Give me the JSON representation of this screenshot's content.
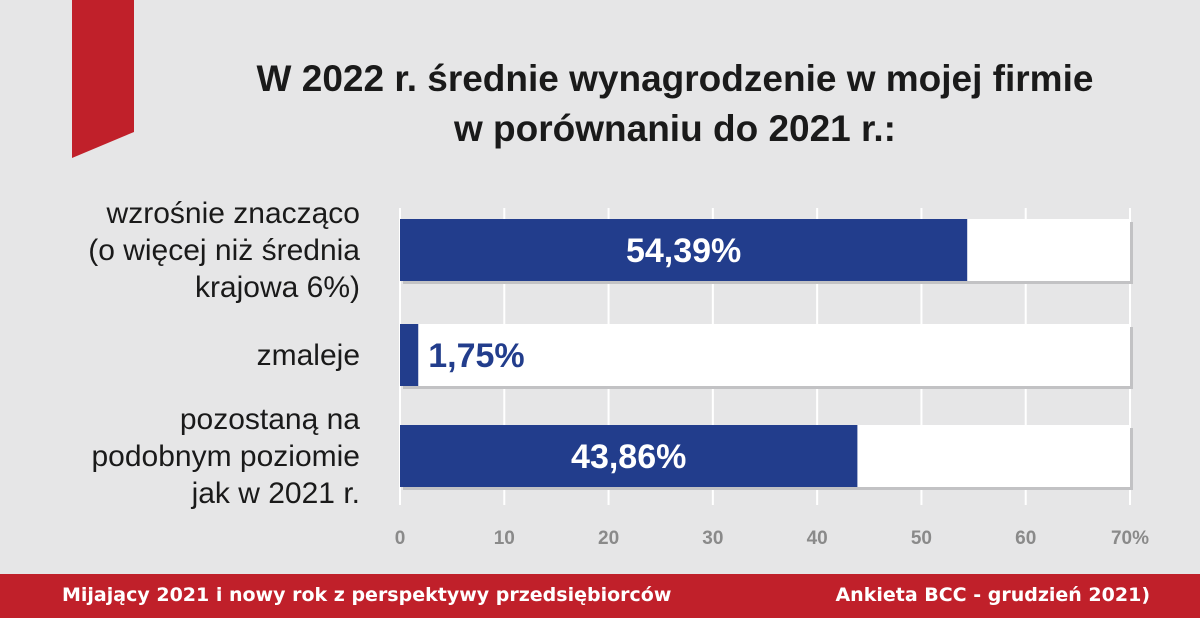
{
  "title": {
    "line1": "W 2022 r. średnie wynagrodzenie w mojej firmie",
    "line2": "w porównaniu do 2021 r.:"
  },
  "colors": {
    "background": "#e6e6e7",
    "bar": "#223d8c",
    "track": "#ffffff",
    "accent_red": "#c0202a",
    "value_label_dark": "#223d8c",
    "value_label_light": "#ffffff",
    "axis_text": "#8a8a8a"
  },
  "chart_data": {
    "type": "bar",
    "orientation": "horizontal",
    "categories": [
      [
        "wzrośnie znacząco",
        "(o więcej niż średnia",
        "krajowa 6%)"
      ],
      [
        "zmaleje"
      ],
      [
        "pozostaną na",
        "podobnym poziomie",
        "jak w 2021 r."
      ]
    ],
    "values": [
      54.39,
      1.75,
      43.86
    ],
    "value_labels": [
      "54,39%",
      "1,75%",
      "43,86%"
    ],
    "xlim": [
      0,
      70
    ],
    "ticks": [
      "0",
      "10",
      "20",
      "30",
      "40",
      "50",
      "60",
      "70%"
    ],
    "grid": true
  },
  "footer": {
    "left": "Mijający 2021 i nowy rok z perspektywy przedsiębiorców",
    "right": "Ankieta BCC - grudzień 2021)"
  }
}
